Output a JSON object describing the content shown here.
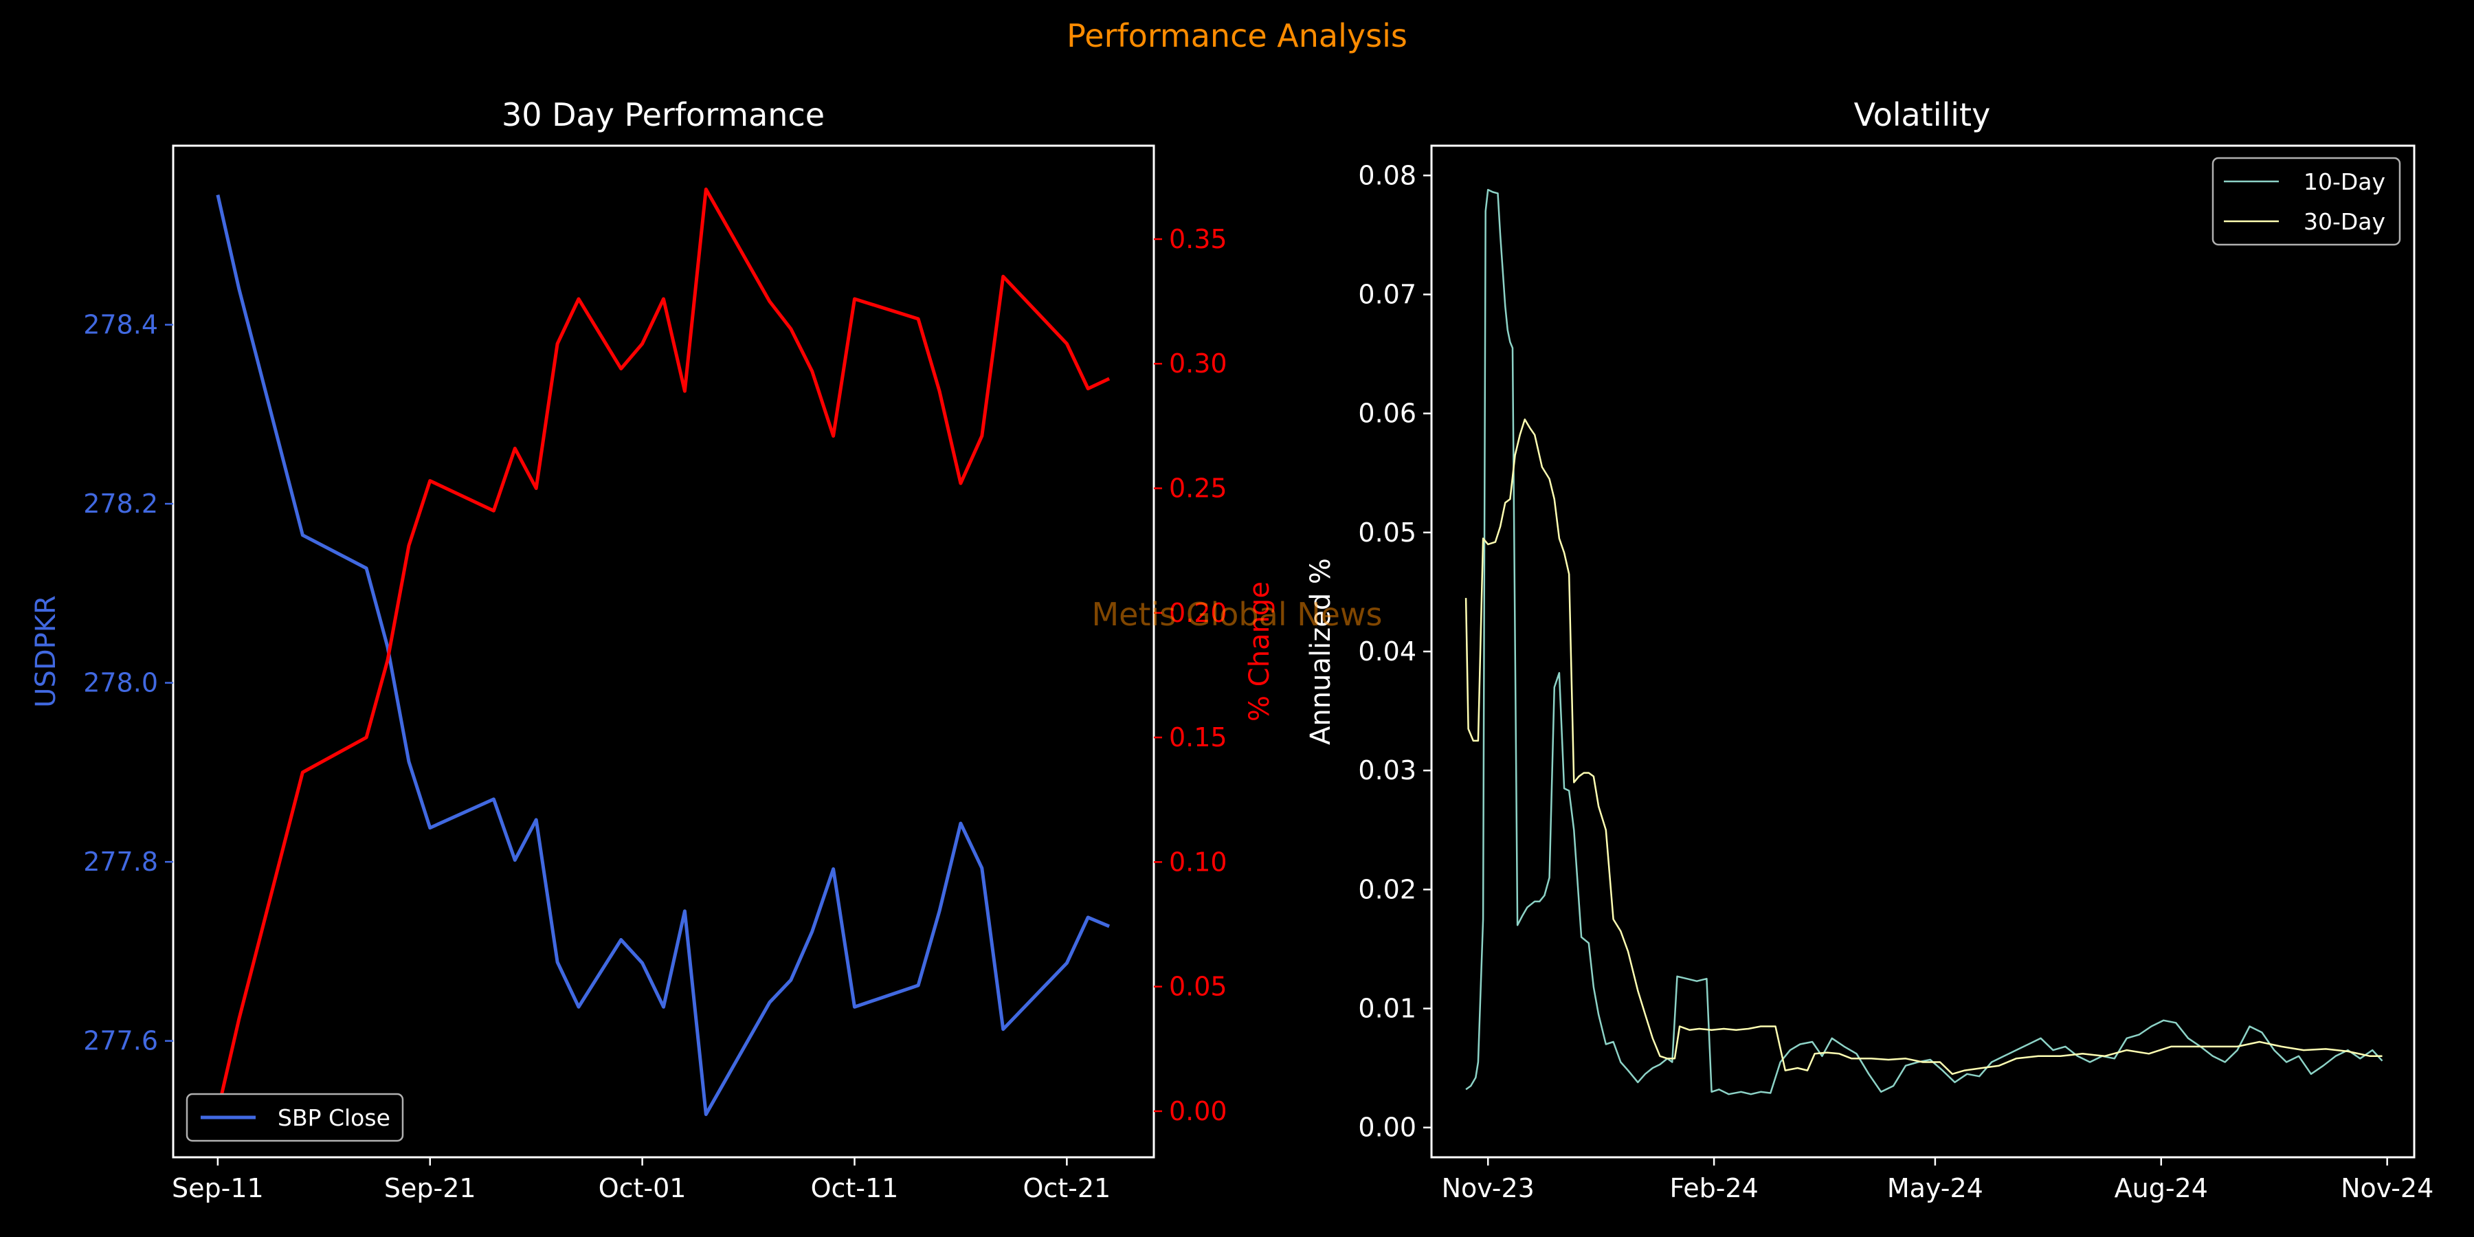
{
  "figure": {
    "suptitle": "Performance Analysis",
    "suptitle_color": "#FF8C00",
    "watermark": "Metis Global News",
    "background": "#000000"
  },
  "chart_data": [
    {
      "type": "line",
      "title": "30 Day Performance",
      "xlabel": "",
      "xticks": [
        "Sep-11",
        "Sep-21",
        "Oct-01",
        "Oct-11",
        "Oct-21"
      ],
      "x": [
        "Sep-11",
        "Sep-12",
        "Sep-15",
        "Sep-18",
        "Sep-19",
        "Sep-20",
        "Sep-21",
        "Sep-24",
        "Sep-25",
        "Sep-26",
        "Sep-27",
        "Sep-28",
        "Sep-30",
        "Oct-01",
        "Oct-02",
        "Oct-03",
        "Oct-04",
        "Oct-07",
        "Oct-08",
        "Oct-09",
        "Oct-10",
        "Oct-11",
        "Oct-14",
        "Oct-15",
        "Oct-16",
        "Oct-17",
        "Oct-18",
        "Oct-21",
        "Oct-22",
        "Oct-23"
      ],
      "left_axis": {
        "label": "USDPKR",
        "color": "#4169E1",
        "ticks": [
          277.6,
          277.8,
          278.0,
          278.2,
          278.4
        ],
        "ylim": [
          277.47,
          278.6
        ]
      },
      "right_axis": {
        "label": "% Change",
        "color": "#FF0000",
        "ticks": [
          "0.00",
          "0.05",
          "0.10",
          "0.15",
          "0.20",
          "0.25",
          "0.30",
          "0.35"
        ],
        "ylim": [
          -0.0185,
          0.3875
        ]
      },
      "series": [
        {
          "name": "SBP Close",
          "axis": "left",
          "color": "#4169E1",
          "values": [
            278.545,
            278.44,
            278.165,
            278.128,
            278.04,
            277.912,
            277.838,
            277.87,
            277.802,
            277.847,
            277.688,
            277.638,
            277.713,
            277.687,
            277.638,
            277.745,
            277.518,
            277.643,
            277.668,
            277.722,
            277.792,
            277.638,
            277.662,
            277.745,
            277.843,
            277.793,
            277.613,
            277.687,
            277.738,
            277.728
          ]
        },
        {
          "axis": "right",
          "color": "#FF0000",
          "values": [
            0.0,
            0.037,
            0.136,
            0.15,
            0.181,
            0.227,
            0.253,
            0.241,
            0.266,
            0.25,
            0.308,
            0.326,
            0.298,
            0.308,
            0.326,
            0.289,
            0.37,
            0.325,
            0.314,
            0.297,
            0.271,
            0.326,
            0.318,
            0.289,
            0.252,
            0.271,
            0.335,
            0.308,
            0.29,
            0.294
          ]
        }
      ],
      "legend": {
        "position": "lower-left",
        "entries": [
          "SBP Close"
        ]
      }
    },
    {
      "type": "line",
      "title": "Volatility",
      "xlabel": "",
      "ylabel": "Annualized %",
      "xticks": [
        "Nov-23",
        "Feb-24",
        "May-24",
        "Aug-24",
        "Nov-24"
      ],
      "xlim": [
        "2023-10-09",
        "2024-11-12"
      ],
      "ylim": [
        -0.0025,
        0.0825
      ],
      "yticks": [
        "0.00",
        "0.01",
        "0.02",
        "0.03",
        "0.04",
        "0.05",
        "0.06",
        "0.07",
        "0.08"
      ],
      "legend": {
        "position": "top-right",
        "entries": [
          "10-Day",
          "30-Day"
        ]
      },
      "series": [
        {
          "name": "10-Day",
          "color": "#8DD3C7",
          "points": [
            [
              "2023-10-23",
              0.0032
            ],
            [
              "2023-10-25",
              0.0035
            ],
            [
              "2023-10-27",
              0.0042
            ],
            [
              "2023-10-28",
              0.0055
            ],
            [
              "2023-10-30",
              0.0175
            ],
            [
              "2023-10-31",
              0.077
            ],
            [
              "2023-11-01",
              0.0788
            ],
            [
              "2023-11-03",
              0.0786
            ],
            [
              "2023-11-05",
              0.0785
            ],
            [
              "2023-11-06",
              0.075
            ],
            [
              "2023-11-08",
              0.069
            ],
            [
              "2023-11-09",
              0.067
            ],
            [
              "2023-11-10",
              0.066
            ],
            [
              "2023-11-11",
              0.0655
            ],
            [
              "2023-11-13",
              0.017
            ],
            [
              "2023-11-15",
              0.0178
            ],
            [
              "2023-11-17",
              0.0185
            ],
            [
              "2023-11-20",
              0.019
            ],
            [
              "2023-11-22",
              0.019
            ],
            [
              "2023-11-24",
              0.0195
            ],
            [
              "2023-11-26",
              0.021
            ],
            [
              "2023-11-28",
              0.037
            ],
            [
              "2023-11-30",
              0.0382
            ],
            [
              "2023-12-02",
              0.0285
            ],
            [
              "2023-12-04",
              0.0283
            ],
            [
              "2023-12-06",
              0.025
            ],
            [
              "2023-12-09",
              0.016
            ],
            [
              "2023-12-12",
              0.0155
            ],
            [
              "2023-12-14",
              0.0118
            ],
            [
              "2023-12-16",
              0.0095
            ],
            [
              "2023-12-19",
              0.007
            ],
            [
              "2023-12-22",
              0.0072
            ],
            [
              "2023-12-25",
              0.0055
            ],
            [
              "2023-12-28",
              0.0048
            ],
            [
              "2024-01-01",
              0.0038
            ],
            [
              "2024-01-04",
              0.0045
            ],
            [
              "2024-01-07",
              0.005
            ],
            [
              "2024-01-10",
              0.0053
            ],
            [
              "2024-01-13",
              0.0058
            ],
            [
              "2024-01-15",
              0.0055
            ],
            [
              "2024-01-17",
              0.0127
            ],
            [
              "2024-01-21",
              0.0125
            ],
            [
              "2024-01-25",
              0.0123
            ],
            [
              "2024-01-29",
              0.0125
            ],
            [
              "2024-01-31",
              0.003
            ],
            [
              "2024-02-03",
              0.0032
            ],
            [
              "2024-02-07",
              0.0028
            ],
            [
              "2024-02-12",
              0.003
            ],
            [
              "2024-02-16",
              0.0028
            ],
            [
              "2024-02-20",
              0.003
            ],
            [
              "2024-02-24",
              0.0029
            ],
            [
              "2024-02-28",
              0.0055
            ],
            [
              "2024-03-03",
              0.0065
            ],
            [
              "2024-03-07",
              0.007
            ],
            [
              "2024-03-12",
              0.0072
            ],
            [
              "2024-03-16",
              0.006
            ],
            [
              "2024-03-20",
              0.0075
            ],
            [
              "2024-03-25",
              0.0068
            ],
            [
              "2024-03-30",
              0.0062
            ],
            [
              "2024-04-04",
              0.0045
            ],
            [
              "2024-04-09",
              0.003
            ],
            [
              "2024-04-14",
              0.0035
            ],
            [
              "2024-04-19",
              0.0052
            ],
            [
              "2024-04-24",
              0.0055
            ],
            [
              "2024-04-29",
              0.0057
            ],
            [
              "2024-05-04",
              0.0048
            ],
            [
              "2024-05-09",
              0.0038
            ],
            [
              "2024-05-14",
              0.0045
            ],
            [
              "2024-05-19",
              0.0043
            ],
            [
              "2024-05-24",
              0.0055
            ],
            [
              "2024-05-29",
              0.006
            ],
            [
              "2024-06-03",
              0.0065
            ],
            [
              "2024-06-08",
              0.007
            ],
            [
              "2024-06-13",
              0.0075
            ],
            [
              "2024-06-18",
              0.0065
            ],
            [
              "2024-06-23",
              0.0068
            ],
            [
              "2024-06-28",
              0.006
            ],
            [
              "2024-07-03",
              0.0055
            ],
            [
              "2024-07-08",
              0.006
            ],
            [
              "2024-07-13",
              0.0058
            ],
            [
              "2024-07-18",
              0.0075
            ],
            [
              "2024-07-23",
              0.0078
            ],
            [
              "2024-07-28",
              0.0085
            ],
            [
              "2024-08-02",
              0.009
            ],
            [
              "2024-08-07",
              0.0088
            ],
            [
              "2024-08-12",
              0.0075
            ],
            [
              "2024-08-17",
              0.0068
            ],
            [
              "2024-08-22",
              0.006
            ],
            [
              "2024-08-27",
              0.0055
            ],
            [
              "2024-09-01",
              0.0065
            ],
            [
              "2024-09-06",
              0.0085
            ],
            [
              "2024-09-11",
              0.008
            ],
            [
              "2024-09-16",
              0.0065
            ],
            [
              "2024-09-21",
              0.0055
            ],
            [
              "2024-09-26",
              0.006
            ],
            [
              "2024-10-01",
              0.0045
            ],
            [
              "2024-10-06",
              0.0052
            ],
            [
              "2024-10-11",
              0.006
            ],
            [
              "2024-10-16",
              0.0065
            ],
            [
              "2024-10-21",
              0.0058
            ],
            [
              "2024-10-26",
              0.0065
            ],
            [
              "2024-10-30",
              0.0056
            ]
          ]
        },
        {
          "name": "30-Day",
          "color": "#FFFFB3",
          "points": [
            [
              "2023-10-23",
              0.0445
            ],
            [
              "2023-10-24",
              0.0335
            ],
            [
              "2023-10-26",
              0.0325
            ],
            [
              "2023-10-28",
              0.0325
            ],
            [
              "2023-10-30",
              0.0495
            ],
            [
              "2023-11-01",
              0.049
            ],
            [
              "2023-11-04",
              0.0492
            ],
            [
              "2023-11-06",
              0.0505
            ],
            [
              "2023-11-08",
              0.0525
            ],
            [
              "2023-11-10",
              0.0528
            ],
            [
              "2023-11-12",
              0.0565
            ],
            [
              "2023-11-14",
              0.0582
            ],
            [
              "2023-11-16",
              0.0595
            ],
            [
              "2023-11-18",
              0.0588
            ],
            [
              "2023-11-20",
              0.0582
            ],
            [
              "2023-11-23",
              0.0555
            ],
            [
              "2023-11-26",
              0.0545
            ],
            [
              "2023-11-28",
              0.0528
            ],
            [
              "2023-11-30",
              0.0495
            ],
            [
              "2023-12-02",
              0.0483
            ],
            [
              "2023-12-04",
              0.0465
            ],
            [
              "2023-12-06",
              0.029
            ],
            [
              "2023-12-08",
              0.0295
            ],
            [
              "2023-12-10",
              0.0298
            ],
            [
              "2023-12-12",
              0.0298
            ],
            [
              "2023-12-14",
              0.0295
            ],
            [
              "2023-12-16",
              0.027
            ],
            [
              "2023-12-19",
              0.025
            ],
            [
              "2023-12-22",
              0.0175
            ],
            [
              "2023-12-25",
              0.0165
            ],
            [
              "2023-12-28",
              0.0148
            ],
            [
              "2024-01-01",
              0.0115
            ],
            [
              "2024-01-04",
              0.0095
            ],
            [
              "2024-01-07",
              0.0075
            ],
            [
              "2024-01-10",
              0.006
            ],
            [
              "2024-01-13",
              0.0058
            ],
            [
              "2024-01-16",
              0.0058
            ],
            [
              "2024-01-18",
              0.0085
            ],
            [
              "2024-01-22",
              0.0082
            ],
            [
              "2024-01-26",
              0.0083
            ],
            [
              "2024-01-31",
              0.0082
            ],
            [
              "2024-02-05",
              0.0083
            ],
            [
              "2024-02-10",
              0.0082
            ],
            [
              "2024-02-15",
              0.0083
            ],
            [
              "2024-02-20",
              0.0085
            ],
            [
              "2024-02-26",
              0.0085
            ],
            [
              "2024-03-01",
              0.0048
            ],
            [
              "2024-03-06",
              0.005
            ],
            [
              "2024-03-10",
              0.0048
            ],
            [
              "2024-03-13",
              0.0062
            ],
            [
              "2024-03-18",
              0.0063
            ],
            [
              "2024-03-23",
              0.0062
            ],
            [
              "2024-03-28",
              0.0058
            ],
            [
              "2024-04-05",
              0.0058
            ],
            [
              "2024-04-12",
              0.0057
            ],
            [
              "2024-04-19",
              0.0058
            ],
            [
              "2024-04-26",
              0.0055
            ],
            [
              "2024-05-03",
              0.0055
            ],
            [
              "2024-05-08",
              0.0045
            ],
            [
              "2024-05-13",
              0.0048
            ],
            [
              "2024-05-20",
              0.005
            ],
            [
              "2024-05-27",
              0.0052
            ],
            [
              "2024-06-03",
              0.0058
            ],
            [
              "2024-06-12",
              0.006
            ],
            [
              "2024-06-21",
              0.006
            ],
            [
              "2024-06-30",
              0.0062
            ],
            [
              "2024-07-09",
              0.006
            ],
            [
              "2024-07-18",
              0.0065
            ],
            [
              "2024-07-27",
              0.0062
            ],
            [
              "2024-08-05",
              0.0068
            ],
            [
              "2024-08-14",
              0.0068
            ],
            [
              "2024-08-23",
              0.0068
            ],
            [
              "2024-09-01",
              0.0068
            ],
            [
              "2024-09-10",
              0.0072
            ],
            [
              "2024-09-19",
              0.0068
            ],
            [
              "2024-09-28",
              0.0065
            ],
            [
              "2024-10-07",
              0.0066
            ],
            [
              "2024-10-16",
              0.0064
            ],
            [
              "2024-10-25",
              0.006
            ],
            [
              "2024-10-30",
              0.006
            ]
          ]
        }
      ]
    }
  ]
}
